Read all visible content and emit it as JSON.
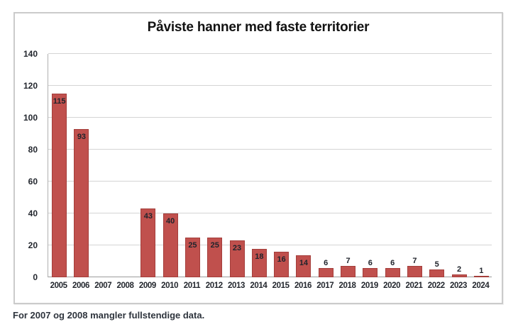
{
  "chart_data": {
    "type": "bar",
    "title": "Påviste hanner med faste territorier",
    "categories": [
      "2005",
      "2006",
      "2007",
      "2008",
      "2009",
      "2010",
      "2011",
      "2012",
      "2013",
      "2014",
      "2015",
      "2016",
      "2017",
      "2018",
      "2019",
      "2020",
      "2021",
      "2022",
      "2023",
      "2024"
    ],
    "values": [
      115,
      93,
      null,
      null,
      43,
      40,
      25,
      25,
      23,
      18,
      16,
      14,
      6,
      7,
      6,
      6,
      7,
      5,
      2,
      1
    ],
    "xlabel": "",
    "ylabel": "",
    "ylim": [
      0,
      140
    ],
    "yticks": [
      0,
      20,
      40,
      60,
      80,
      100,
      120,
      140
    ],
    "grid": "horizontal",
    "legend": "none",
    "data_labels": "on",
    "bar_color": "#C0504D"
  },
  "footnote": "For 2007 og 2008 mangler fullstendige data."
}
